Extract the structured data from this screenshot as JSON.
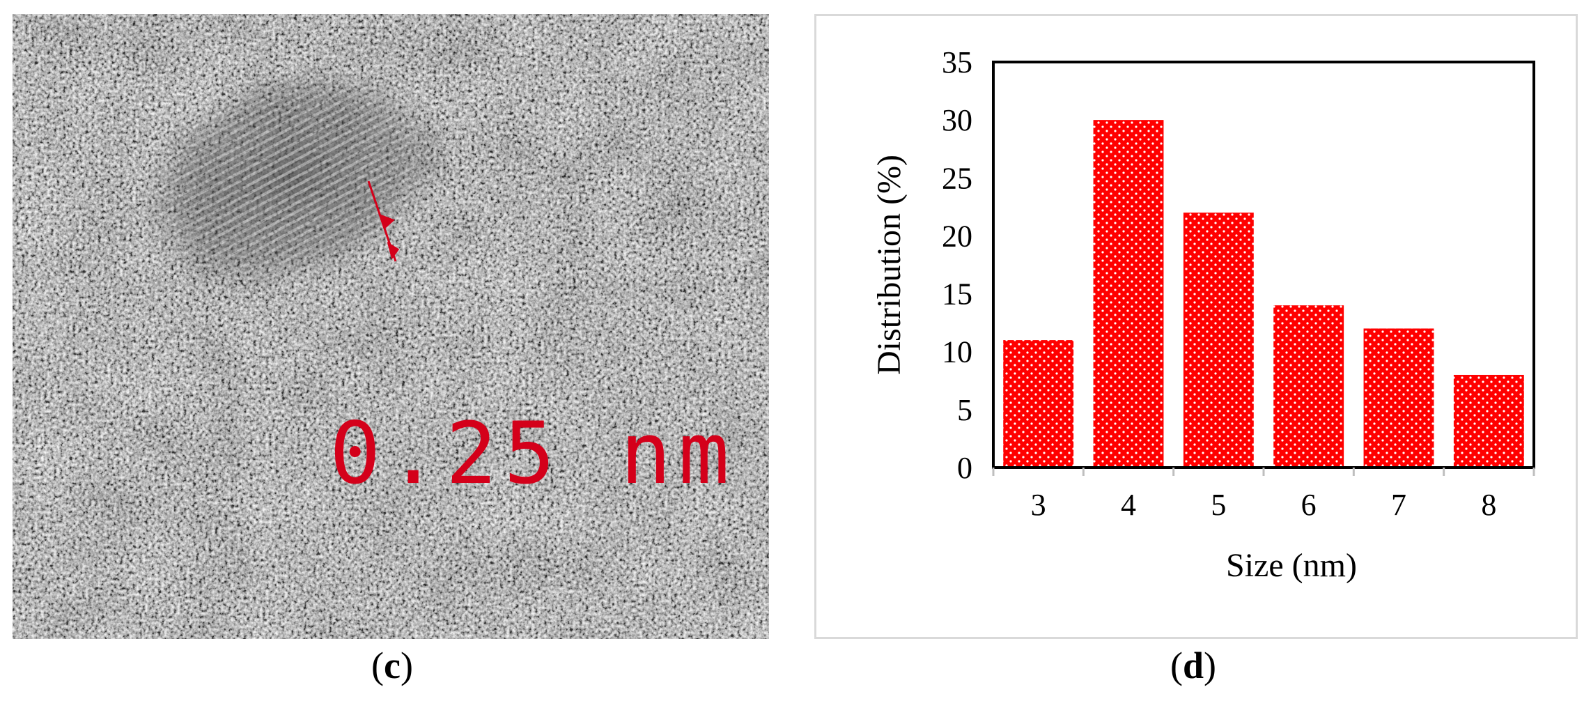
{
  "panels": {
    "left": {
      "caption_open": "(",
      "caption_letter": "c",
      "caption_close": ")",
      "lattice_spacing_label": "0.25 nm",
      "annotation_color": "#d4001a"
    },
    "right": {
      "caption_open": "(",
      "caption_letter": "d",
      "caption_close": ")"
    }
  },
  "chart_data": {
    "type": "bar",
    "title": "",
    "xlabel": "Size (nm)",
    "ylabel": "Distribution (%)",
    "categories": [
      "3",
      "4",
      "5",
      "6",
      "7",
      "8"
    ],
    "values": [
      11,
      30,
      22,
      14,
      12,
      8
    ],
    "ylim": [
      0,
      35
    ],
    "yticks": [
      0,
      5,
      10,
      15,
      20,
      25,
      30,
      35
    ],
    "grid": false,
    "legend": "none",
    "bar_color": "#ff0000",
    "bar_pattern": "white-dotted"
  }
}
